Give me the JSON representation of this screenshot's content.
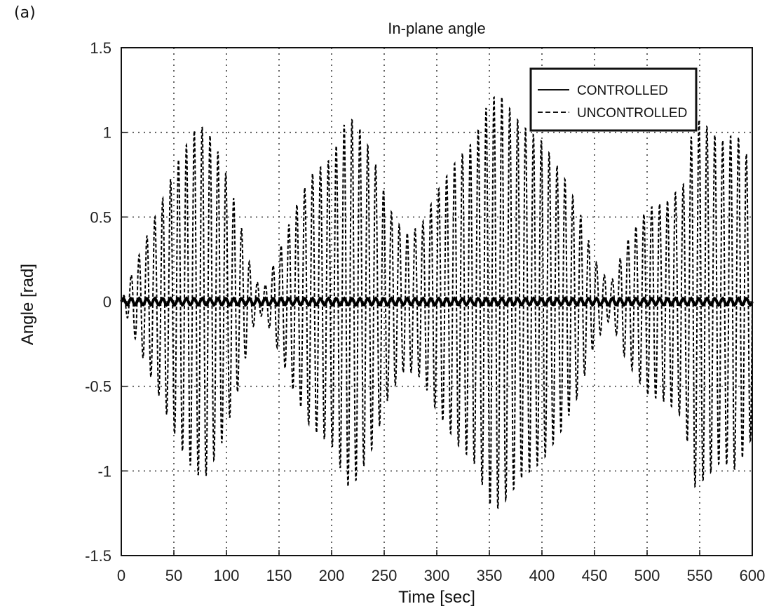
{
  "panel_label": "(a)",
  "chart_data": {
    "type": "line",
    "title": "In-plane angle",
    "xlabel": "Time [sec]",
    "ylabel": "Angle [rad]",
    "xlim": [
      0,
      600
    ],
    "ylim": [
      -1.5,
      1.5
    ],
    "xticks": [
      0,
      50,
      100,
      150,
      200,
      250,
      300,
      350,
      400,
      450,
      500,
      550,
      600
    ],
    "xtick_labels": [
      "0",
      "50",
      "100",
      "150",
      "200",
      "250",
      "300",
      "350",
      "400",
      "450",
      "500",
      "550",
      "600"
    ],
    "yticks": [
      1.5,
      1,
      0.5,
      0,
      -0.5,
      -1,
      -1.5
    ],
    "ytick_labels": [
      "1.5",
      "1",
      "0.5",
      "0",
      "-0.5",
      "-1",
      "-1.5"
    ],
    "grid": true,
    "legend": "top-right",
    "series": [
      {
        "name": "CONTROLLED",
        "style": "solid",
        "color": "#000000",
        "amplitude": 0.02
      },
      {
        "name": "UNCONTROLLED",
        "style": "dashed",
        "color": "#000000",
        "oscillation_period_sec": 7.5,
        "envelope": [
          [
            0,
            0.0
          ],
          [
            12,
            0.2
          ],
          [
            25,
            0.4
          ],
          [
            40,
            0.62
          ],
          [
            55,
            0.85
          ],
          [
            70,
            1.02
          ],
          [
            80,
            1.04
          ],
          [
            95,
            0.85
          ],
          [
            110,
            0.55
          ],
          [
            125,
            0.15
          ],
          [
            135,
            0.07
          ],
          [
            150,
            0.3
          ],
          [
            165,
            0.55
          ],
          [
            180,
            0.75
          ],
          [
            200,
            0.85
          ],
          [
            215,
            1.1
          ],
          [
            225,
            1.05
          ],
          [
            240,
            0.85
          ],
          [
            255,
            0.55
          ],
          [
            270,
            0.4
          ],
          [
            285,
            0.45
          ],
          [
            300,
            0.65
          ],
          [
            320,
            0.85
          ],
          [
            335,
            0.95
          ],
          [
            350,
            1.2
          ],
          [
            360,
            1.23
          ],
          [
            380,
            1.05
          ],
          [
            400,
            0.95
          ],
          [
            420,
            0.75
          ],
          [
            435,
            0.55
          ],
          [
            450,
            0.25
          ],
          [
            465,
            0.1
          ],
          [
            480,
            0.35
          ],
          [
            500,
            0.55
          ],
          [
            520,
            0.6
          ],
          [
            535,
            0.7
          ],
          [
            545,
            1.1
          ],
          [
            555,
            1.05
          ],
          [
            570,
            0.95
          ],
          [
            585,
            1.0
          ],
          [
            600,
            0.8
          ]
        ]
      }
    ]
  }
}
